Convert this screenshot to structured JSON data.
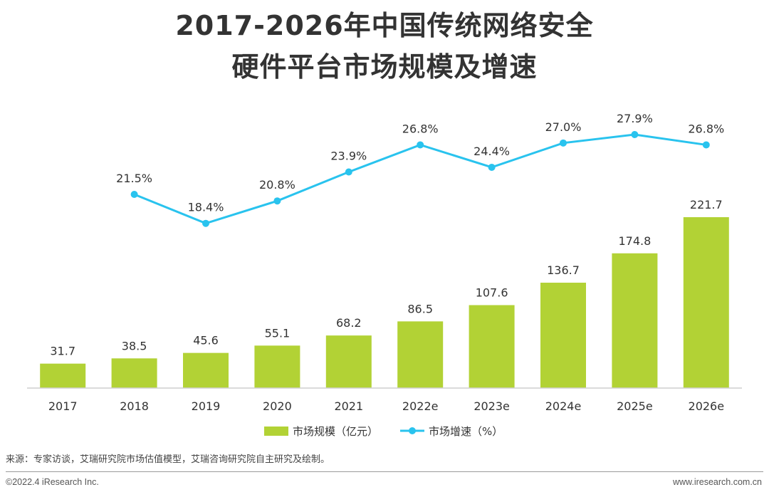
{
  "header": {
    "title_line1": "2017-2026年中国传统网络安全",
    "title_line2": "硬件平台市场规模及增速"
  },
  "chart_data": {
    "type": "bar",
    "categories": [
      "2017",
      "2018",
      "2019",
      "2020",
      "2021",
      "2022e",
      "2023e",
      "2024e",
      "2025e",
      "2026e"
    ],
    "series": [
      {
        "name": "市场规模（亿元）",
        "type": "bar",
        "values": [
          31.7,
          38.5,
          45.6,
          55.1,
          68.2,
          86.5,
          107.6,
          136.7,
          174.8,
          221.7
        ],
        "labels": [
          "31.7",
          "38.5",
          "45.6",
          "55.1",
          "68.2",
          "86.5",
          "107.6",
          "136.7",
          "174.8",
          "221.7"
        ],
        "color": "#b2d235"
      },
      {
        "name": "市场增速（%）",
        "type": "line",
        "values": [
          null,
          21.5,
          18.4,
          20.8,
          23.9,
          26.8,
          24.4,
          27.0,
          27.9,
          26.8
        ],
        "labels": [
          "",
          "21.5%",
          "18.4%",
          "20.8%",
          "23.9%",
          "26.8%",
          "24.4%",
          "27.0%",
          "27.9%",
          "26.8%"
        ],
        "color": "#29c3ee"
      }
    ],
    "bar_range": [
      0,
      250
    ],
    "line_range": [
      10,
      30
    ],
    "legend_position": "bottom-center",
    "grid": false
  },
  "footer": {
    "source": "来源：专家访谈，艾瑞研究院市场估值模型，艾瑞咨询研究院自主研究及绘制。",
    "copyright": "©2022.4 iResearch Inc.",
    "website": "www.iresearch.com.cn"
  }
}
